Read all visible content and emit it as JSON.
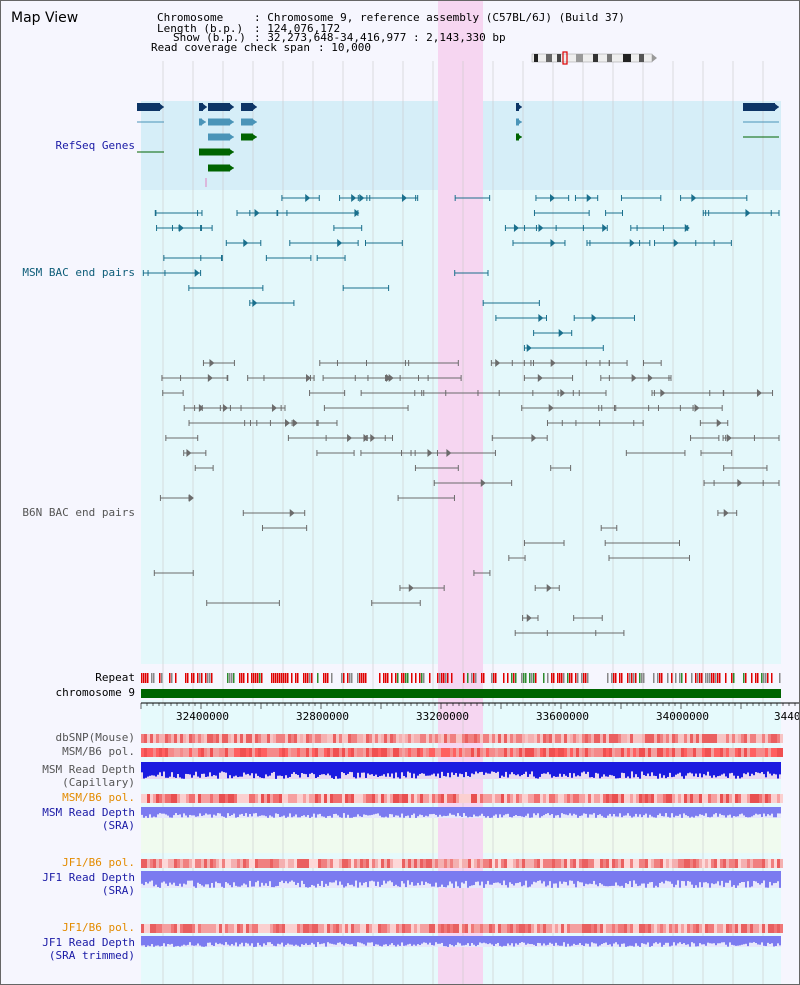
{
  "title": "Map View",
  "header": {
    "chromosome_key": "Chromosome",
    "chromosome_val": ": Chromosome 9, reference assembly (C57BL/6J) (Build 37)",
    "length_key": "Length (b.p.)",
    "length_val": ": 124,076,172",
    "show_key": "Show (b.p.)",
    "show_val": ": 32,273,648-34,416,977 : 2,143,330 bp",
    "span_key": "Read coverage check span",
    "span_val": ": 10,000"
  },
  "tracks": {
    "refseq": "RefSeq Genes",
    "msm_bac": "MSM BAC end pairs",
    "b6n_bac": "B6N BAC end pairs",
    "repeat": "Repeat",
    "chromosome": "chromosome 9"
  },
  "axis": {
    "ticks": [
      "32400000",
      "32800000",
      "33200000",
      "33600000",
      "34000000",
      "3440"
    ]
  },
  "lower_tracks": {
    "dbsnp": "dbSNP(Mouse)",
    "msm_b6_pol_1": "MSM/B6 pol.",
    "msm_depth_cap_1": "MSM Read Depth",
    "msm_depth_cap_2": "(Capillary)",
    "msm_b6_pol_2": "MSM/B6 pol.",
    "msm_depth_sra_1": "MSM Read Depth",
    "msm_depth_sra_2": "(SRA)",
    "jf1_b6_pol_1": "JF1/B6 pol.",
    "jf1_depth_1": "JF1 Read Depth",
    "jf1_depth_2": "(SRA)",
    "jf1_b6_pol_2": "JF1/B6 pol.",
    "jf1_depth_trim_1": "JF1 Read Depth",
    "jf1_depth_trim_2": "(SRA trimmed)"
  },
  "colors": {
    "refseq_bg": "#d6eef8",
    "bac_bg": "#e4f8fb",
    "highlight": "#f6d6f1",
    "msm_bac": "#1a6f8c",
    "b6n_bac": "#6b6b6b",
    "chromosome_bar": "#006400",
    "refseq_dark": "#0d3566",
    "refseq_mid": "#4a94b8",
    "refseq_green": "#006400",
    "depth_blue": "#1b1be0",
    "depth_lavender": "#7b7bf0"
  }
}
